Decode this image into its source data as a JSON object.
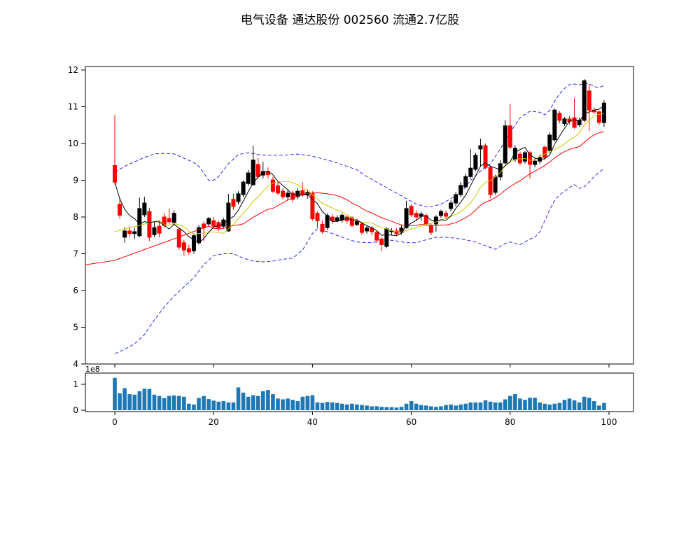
{
  "title": "电气设备 通达股份 002560 流通2.7亿股",
  "chart_data": [
    {
      "type": "candlestick",
      "name": "price-panel",
      "ylabel": "",
      "ylim": [
        4,
        12.1
      ],
      "xlim": [
        -6,
        105
      ],
      "y_ticks": [
        4,
        5,
        6,
        7,
        8,
        9,
        10,
        11,
        12
      ],
      "x_ticks": [
        0,
        20,
        40,
        60,
        80,
        100
      ],
      "grid": false,
      "legend": "none",
      "colors": {
        "up": "#000000",
        "down": "#ff0000",
        "ma_fast": "#000000",
        "ma_mid": "#c9c900",
        "ma_slow": "#ff0000",
        "band": "#2a2aee",
        "spine": "#000000"
      },
      "overlays": {
        "ma_fast_window": 5,
        "ma_mid_window": 10,
        "ma_mid_seed": 7.6,
        "ma_slow_window": 20,
        "ma_slow_seed": 6.82,
        "ma_slow_pre": [
          -6,
          6.7
        ]
      },
      "bollinger_upper": [
        [
          0,
          9.22
        ],
        [
          2,
          9.38
        ],
        [
          4,
          9.5
        ],
        [
          6,
          9.62
        ],
        [
          8,
          9.72
        ],
        [
          10,
          9.73
        ],
        [
          12,
          9.72
        ],
        [
          14,
          9.6
        ],
        [
          16,
          9.48
        ],
        [
          17,
          9.38
        ],
        [
          18,
          9.2
        ],
        [
          19,
          9.0
        ],
        [
          20,
          9.0
        ],
        [
          21,
          9.1
        ],
        [
          23,
          9.45
        ],
        [
          25,
          9.7
        ],
        [
          27,
          9.75
        ],
        [
          29,
          9.7
        ],
        [
          31,
          9.68
        ],
        [
          33,
          9.68
        ],
        [
          35,
          9.69
        ],
        [
          37,
          9.71
        ],
        [
          39,
          9.68
        ],
        [
          41,
          9.62
        ],
        [
          43,
          9.55
        ],
        [
          45,
          9.47
        ],
        [
          47,
          9.38
        ],
        [
          49,
          9.28
        ],
        [
          51,
          9.1
        ],
        [
          53,
          8.95
        ],
        [
          55,
          8.8
        ],
        [
          57,
          8.65
        ],
        [
          59,
          8.5
        ],
        [
          61,
          8.35
        ],
        [
          63,
          8.28
        ],
        [
          64,
          8.28
        ],
        [
          66,
          8.35
        ],
        [
          68,
          8.5
        ],
        [
          70,
          8.65
        ],
        [
          72,
          9.0
        ],
        [
          74,
          9.25
        ],
        [
          76,
          9.45
        ],
        [
          78,
          9.85
        ],
        [
          80,
          10.3
        ],
        [
          82,
          10.7
        ],
        [
          84,
          10.88
        ],
        [
          86,
          10.85
        ],
        [
          87,
          10.78
        ],
        [
          88,
          10.9
        ],
        [
          89,
          11.15
        ],
        [
          90,
          11.35
        ],
        [
          91,
          11.5
        ],
        [
          92,
          11.6
        ],
        [
          93,
          11.62
        ],
        [
          94,
          11.6
        ],
        [
          95,
          11.63
        ],
        [
          96,
          11.62
        ],
        [
          97,
          11.55
        ],
        [
          98,
          11.52
        ],
        [
          99,
          11.58
        ]
      ],
      "bollinger_lower": [
        [
          0,
          4.28
        ],
        [
          2,
          4.4
        ],
        [
          4,
          4.55
        ],
        [
          6,
          4.8
        ],
        [
          8,
          5.2
        ],
        [
          10,
          5.55
        ],
        [
          12,
          5.85
        ],
        [
          14,
          6.1
        ],
        [
          16,
          6.35
        ],
        [
          18,
          6.7
        ],
        [
          20,
          6.95
        ],
        [
          22,
          7.0
        ],
        [
          24,
          7.0
        ],
        [
          26,
          6.88
        ],
        [
          28,
          6.8
        ],
        [
          30,
          6.78
        ],
        [
          32,
          6.8
        ],
        [
          34,
          6.85
        ],
        [
          36,
          6.88
        ],
        [
          38,
          7.1
        ],
        [
          40,
          7.55
        ],
        [
          41,
          7.68
        ],
        [
          43,
          7.6
        ],
        [
          45,
          7.5
        ],
        [
          47,
          7.4
        ],
        [
          49,
          7.32
        ],
        [
          51,
          7.3
        ],
        [
          53,
          7.32
        ],
        [
          55,
          7.38
        ],
        [
          57,
          7.35
        ],
        [
          59,
          7.3
        ],
        [
          61,
          7.3
        ],
        [
          63,
          7.38
        ],
        [
          65,
          7.45
        ],
        [
          67,
          7.45
        ],
        [
          69,
          7.42
        ],
        [
          71,
          7.38
        ],
        [
          73,
          7.32
        ],
        [
          75,
          7.22
        ],
        [
          77,
          7.12
        ],
        [
          78,
          7.2
        ],
        [
          79,
          7.28
        ],
        [
          80,
          7.32
        ],
        [
          81,
          7.28
        ],
        [
          82,
          7.25
        ],
        [
          83,
          7.32
        ],
        [
          84,
          7.4
        ],
        [
          85,
          7.45
        ],
        [
          86,
          7.6
        ],
        [
          87,
          7.9
        ],
        [
          88,
          8.2
        ],
        [
          89,
          8.45
        ],
        [
          90,
          8.6
        ],
        [
          91,
          8.7
        ],
        [
          92,
          8.8
        ],
        [
          93,
          8.88
        ],
        [
          94,
          8.78
        ],
        [
          95,
          8.82
        ],
        [
          96,
          8.95
        ],
        [
          97,
          9.1
        ],
        [
          98,
          9.22
        ],
        [
          99,
          9.32
        ]
      ],
      "ohlc": [
        [
          9.4,
          10.78,
          8.88,
          8.95
        ],
        [
          8.35,
          8.53,
          7.95,
          8.05
        ],
        [
          7.45,
          7.72,
          7.3,
          7.62
        ],
        [
          7.62,
          7.75,
          7.45,
          7.55
        ],
        [
          7.55,
          7.7,
          7.4,
          7.6
        ],
        [
          7.49,
          8.53,
          7.45,
          8.23
        ],
        [
          8.06,
          8.55,
          8.0,
          8.38
        ],
        [
          8.15,
          8.25,
          7.35,
          7.45
        ],
        [
          7.52,
          7.85,
          7.45,
          7.71
        ],
        [
          7.75,
          7.9,
          7.45,
          7.56
        ],
        [
          8.0,
          8.1,
          7.7,
          7.77
        ],
        [
          7.96,
          8.23,
          7.8,
          7.87
        ],
        [
          7.85,
          8.18,
          7.78,
          8.1
        ],
        [
          7.66,
          7.7,
          7.1,
          7.18
        ],
        [
          7.3,
          7.38,
          6.95,
          7.1
        ],
        [
          7.14,
          7.25,
          6.97,
          7.05
        ],
        [
          7.08,
          7.55,
          7.0,
          7.49
        ],
        [
          7.3,
          7.78,
          7.25,
          7.71
        ],
        [
          7.81,
          7.88,
          7.35,
          7.71
        ],
        [
          7.81,
          8.0,
          7.75,
          7.96
        ],
        [
          7.9,
          8.0,
          7.7,
          7.75
        ],
        [
          7.85,
          7.9,
          7.62,
          7.7
        ],
        [
          7.75,
          7.98,
          7.7,
          7.92
        ],
        [
          7.62,
          8.63,
          7.6,
          8.38
        ],
        [
          8.48,
          8.63,
          8.2,
          8.29
        ],
        [
          8.42,
          8.7,
          8.35,
          8.63
        ],
        [
          8.61,
          9.0,
          8.55,
          8.95
        ],
        [
          8.91,
          9.28,
          8.85,
          9.2
        ],
        [
          8.88,
          9.94,
          8.85,
          9.55
        ],
        [
          9.43,
          9.6,
          9.05,
          9.1
        ],
        [
          9.14,
          9.5,
          9.05,
          9.24
        ],
        [
          9.24,
          9.35,
          9.05,
          9.15
        ],
        [
          9.01,
          9.1,
          8.65,
          8.7
        ],
        [
          8.85,
          8.95,
          8.6,
          8.65
        ],
        [
          8.7,
          8.78,
          8.48,
          8.55
        ],
        [
          8.55,
          8.72,
          8.45,
          8.65
        ],
        [
          8.65,
          8.72,
          8.4,
          8.48
        ],
        [
          8.55,
          8.78,
          8.48,
          8.7
        ],
        [
          8.72,
          8.95,
          8.55,
          8.6
        ],
        [
          8.6,
          8.75,
          8.5,
          8.67
        ],
        [
          8.65,
          8.7,
          7.9,
          7.95
        ],
        [
          8.1,
          8.15,
          7.7,
          7.9
        ],
        [
          7.8,
          7.9,
          7.55,
          7.6
        ],
        [
          7.71,
          8.1,
          7.65,
          8.04
        ],
        [
          8.0,
          8.08,
          7.82,
          7.9
        ],
        [
          7.9,
          8.05,
          7.85,
          7.98
        ],
        [
          7.92,
          8.1,
          7.85,
          8.05
        ],
        [
          8.0,
          8.05,
          7.82,
          7.9
        ],
        [
          7.98,
          8.02,
          7.72,
          7.77
        ],
        [
          7.8,
          7.95,
          7.75,
          7.88
        ],
        [
          7.81,
          7.85,
          7.52,
          7.58
        ],
        [
          7.62,
          7.78,
          7.55,
          7.7
        ],
        [
          7.7,
          7.75,
          7.5,
          7.6
        ],
        [
          7.58,
          7.62,
          7.3,
          7.37
        ],
        [
          7.4,
          7.45,
          7.08,
          7.25
        ],
        [
          7.2,
          7.72,
          7.15,
          7.68
        ],
        [
          7.6,
          7.7,
          7.5,
          7.62
        ],
        [
          7.62,
          7.7,
          7.48,
          7.55
        ],
        [
          7.58,
          7.78,
          7.52,
          7.7
        ],
        [
          7.71,
          8.44,
          7.68,
          8.23
        ],
        [
          8.29,
          8.35,
          8.0,
          8.06
        ],
        [
          8.1,
          8.18,
          7.92,
          8.0
        ],
        [
          8.02,
          8.15,
          7.9,
          8.08
        ],
        [
          8.04,
          8.1,
          7.75,
          7.81
        ],
        [
          7.77,
          7.82,
          7.5,
          7.58
        ],
        [
          7.81,
          8.05,
          7.6,
          8.0
        ],
        [
          8.04,
          8.2,
          7.98,
          8.15
        ],
        [
          8.1,
          8.18,
          7.95,
          8.02
        ],
        [
          8.23,
          8.45,
          8.15,
          8.38
        ],
        [
          8.38,
          8.68,
          8.3,
          8.61
        ],
        [
          8.61,
          8.95,
          8.55,
          8.86
        ],
        [
          8.82,
          9.18,
          8.78,
          9.1
        ],
        [
          9.1,
          9.85,
          9.05,
          9.33
        ],
        [
          9.3,
          9.75,
          9.25,
          9.68
        ],
        [
          9.85,
          10.13,
          9.39,
          9.94
        ],
        [
          9.94,
          10.0,
          9.3,
          9.35
        ],
        [
          9.35,
          9.4,
          8.51,
          8.61
        ],
        [
          8.67,
          9.15,
          8.6,
          9.09
        ],
        [
          9.09,
          9.55,
          9.0,
          9.45
        ],
        [
          9.47,
          10.63,
          9.43,
          10.48
        ],
        [
          10.48,
          11.08,
          9.85,
          9.9
        ],
        [
          9.56,
          9.95,
          9.5,
          9.87
        ],
        [
          9.71,
          9.78,
          9.4,
          9.47
        ],
        [
          9.52,
          9.8,
          9.45,
          9.75
        ],
        [
          9.75,
          9.8,
          9.05,
          9.43
        ],
        [
          9.43,
          9.6,
          9.35,
          9.52
        ],
        [
          9.52,
          9.7,
          9.45,
          9.62
        ],
        [
          9.9,
          9.95,
          9.55,
          9.62
        ],
        [
          9.81,
          10.3,
          9.75,
          10.23
        ],
        [
          10.1,
          10.95,
          10.05,
          10.91
        ],
        [
          10.82,
          10.88,
          10.55,
          10.63
        ],
        [
          10.54,
          10.72,
          10.48,
          10.67
        ],
        [
          10.67,
          10.75,
          10.52,
          10.6
        ],
        [
          10.7,
          11.24,
          10.4,
          10.44
        ],
        [
          10.51,
          10.7,
          10.45,
          10.63
        ],
        [
          10.63,
          11.75,
          10.58,
          11.71
        ],
        [
          11.43,
          11.62,
          10.34,
          10.91
        ],
        [
          10.91,
          10.98,
          10.8,
          10.86
        ],
        [
          10.86,
          10.9,
          10.5,
          10.57
        ],
        [
          10.57,
          11.18,
          10.45,
          11.1
        ]
      ]
    },
    {
      "type": "bar",
      "name": "volume-panel",
      "offset_label": "1e8",
      "y_ticks": [
        0,
        1
      ],
      "x_ticks": [
        0,
        20,
        40,
        60,
        80,
        100
      ],
      "ylim": [
        0,
        1.4
      ],
      "bar_color": "#1f77b4",
      "values": [
        1.25,
        0.65,
        0.85,
        0.62,
        0.6,
        0.73,
        0.83,
        0.82,
        0.6,
        0.55,
        0.47,
        0.55,
        0.57,
        0.55,
        0.52,
        0.25,
        0.22,
        0.47,
        0.55,
        0.43,
        0.37,
        0.33,
        0.35,
        0.3,
        0.3,
        0.88,
        0.68,
        0.52,
        0.58,
        0.55,
        0.73,
        0.78,
        0.62,
        0.45,
        0.42,
        0.45,
        0.4,
        0.35,
        0.52,
        0.55,
        0.58,
        0.3,
        0.28,
        0.32,
        0.3,
        0.28,
        0.25,
        0.22,
        0.25,
        0.22,
        0.2,
        0.18,
        0.15,
        0.15,
        0.13,
        0.12,
        0.12,
        0.1,
        0.13,
        0.25,
        0.35,
        0.25,
        0.2,
        0.18,
        0.15,
        0.13,
        0.15,
        0.2,
        0.22,
        0.18,
        0.22,
        0.25,
        0.3,
        0.3,
        0.3,
        0.38,
        0.33,
        0.3,
        0.3,
        0.42,
        0.55,
        0.62,
        0.45,
        0.4,
        0.48,
        0.48,
        0.3,
        0.25,
        0.22,
        0.25,
        0.28,
        0.4,
        0.45,
        0.38,
        0.3,
        0.52,
        0.48,
        0.35,
        0.18,
        0.28
      ]
    }
  ]
}
